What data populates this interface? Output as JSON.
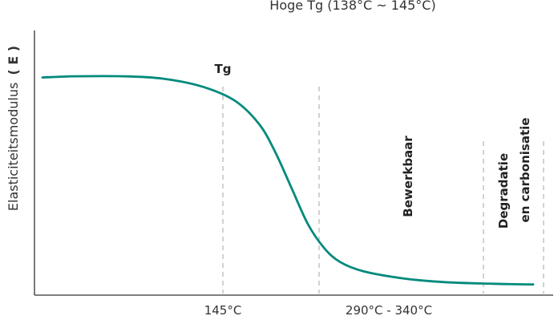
{
  "chart_data": {
    "type": "line",
    "title": "Hoge Tg (138°C ~ 145°C)",
    "ylabel": "Elasticiteitsmodulus",
    "ylabel_unit": "( E )",
    "xlabel": "",
    "x_tick_labels": [
      "145°C",
      "290°C - 340°C"
    ],
    "zone_labels": {
      "tg": "Tg",
      "processable": "Bewerkbaar",
      "degradation_line1": "Degradatie",
      "degradation_line2": "en carbonisatie"
    },
    "grid": false,
    "legend": "none",
    "series": [
      {
        "color": "#008a7c",
        "points": [
          [
            0,
            0.92
          ],
          [
            40,
            0.925
          ],
          [
            100,
            0.925
          ],
          [
            150,
            0.915
          ],
          [
            200,
            0.88
          ],
          [
            240,
            0.82
          ],
          [
            270,
            0.72
          ],
          [
            290,
            0.6
          ],
          [
            310,
            0.45
          ],
          [
            330,
            0.3
          ],
          [
            350,
            0.2
          ],
          [
            370,
            0.14
          ],
          [
            400,
            0.1
          ],
          [
            450,
            0.07
          ],
          [
            500,
            0.055
          ],
          [
            560,
            0.048
          ],
          [
            610,
            0.045
          ]
        ]
      }
    ]
  }
}
